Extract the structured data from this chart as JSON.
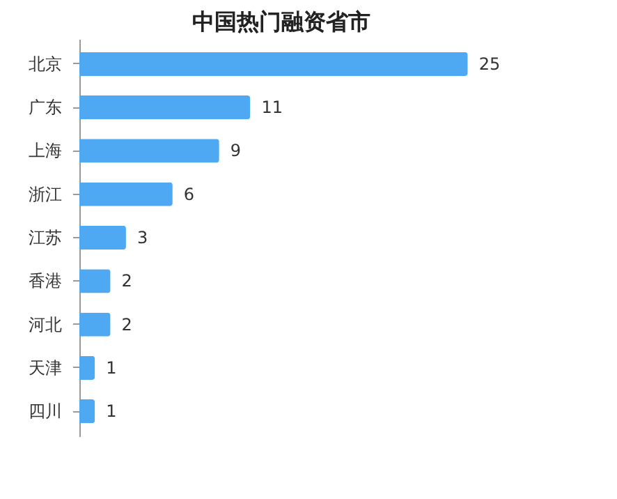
{
  "chart_data": {
    "type": "bar",
    "orientation": "horizontal",
    "title": "中国热门融资省市",
    "categories": [
      "北京",
      "广东",
      "上海",
      "浙江",
      "江苏",
      "香港",
      "河北",
      "天津",
      "四川"
    ],
    "values": [
      25,
      11,
      9,
      6,
      3,
      2,
      2,
      1,
      1
    ],
    "color": "#4ea9f2",
    "data_labels": true,
    "tick_labels": "y"
  }
}
